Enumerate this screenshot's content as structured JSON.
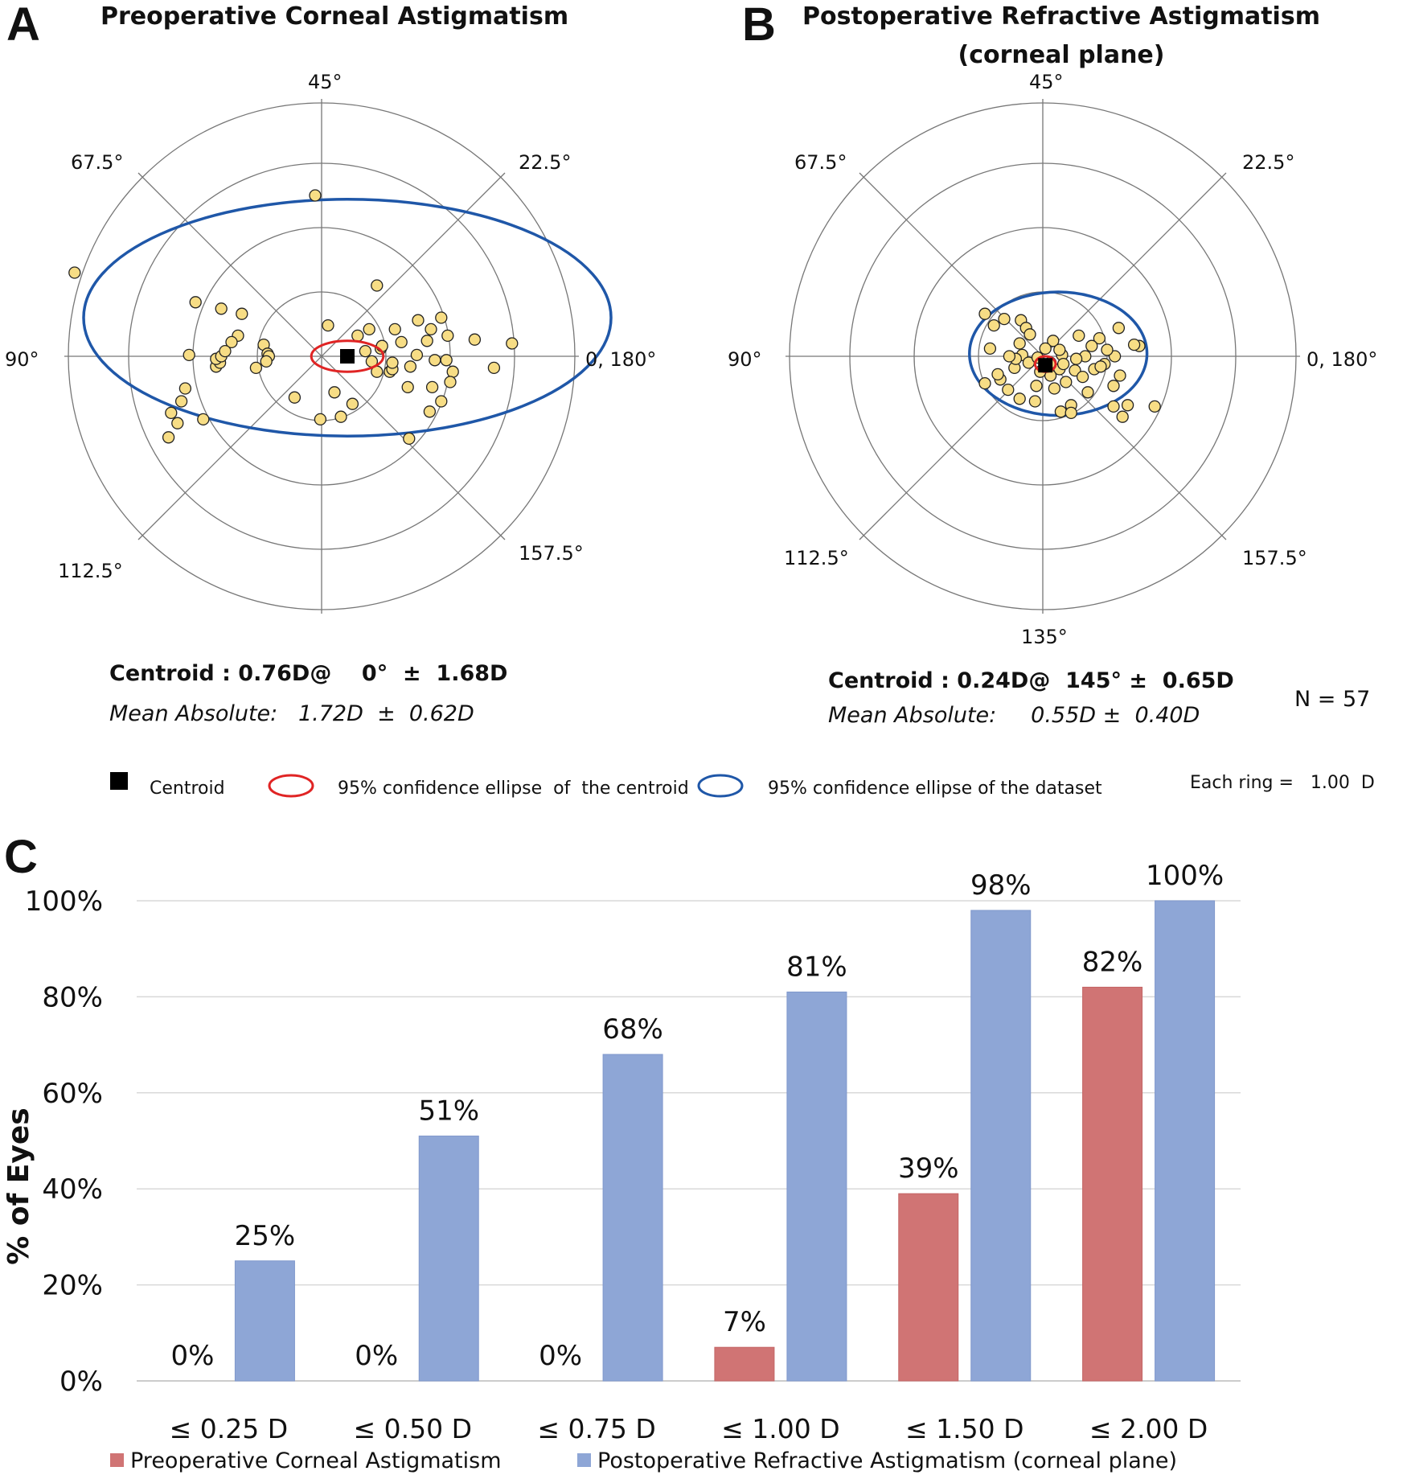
{
  "panels": {
    "a": {
      "letter": "A",
      "title": "Preoperative Corneal Astigmatism",
      "angle_labels": [
        "45°",
        "67.5°",
        "22.5°",
        "90°",
        "0, 180°",
        "112.5°",
        "157.5°"
      ],
      "centroid_text": "Centroid : 0.76D@    0°  ±  1.68D",
      "mean_text": "Mean Absolute:   1.72D  ±  0.62D"
    },
    "b": {
      "letter": "B",
      "title_line1": "Postoperative Refractive Astigmatism",
      "title_line2": "(corneal plane)",
      "angle_labels": [
        "45°",
        "67.5°",
        "22.5°",
        "90°",
        "0, 180°",
        "112.5°",
        "157.5°",
        "135°"
      ],
      "centroid_text": "Centroid : 0.24D@  145° ±  0.65D",
      "mean_text": "Mean Absolute:     0.55D ±  0.40D",
      "n_text": "N = 57"
    }
  },
  "legend": {
    "centroid": "Centroid",
    "centroid_ellipse": "95% confidence ellipse  of  the centroid",
    "dataset_ellipse": "95% confidence ellipse of the dataset",
    "ring_note": "Each ring =   1.00  D",
    "colors": {
      "centroid": "#000000",
      "centroid_ellipse": "#e02424",
      "dataset_ellipse": "#1f57a8"
    }
  },
  "chart_data": [
    {
      "type": "scatter",
      "name": "A",
      "title": "Preoperative Corneal Astigmatism",
      "coordinates": "double-angle polar, magnitude in D",
      "ring_step_d": 1.0,
      "rings": 3,
      "centroid": {
        "magnitude_d": 0.76,
        "axis_deg": 0,
        "sd_d": 1.68
      },
      "mean_absolute": {
        "mean_d": 1.72,
        "sd_d": 0.62
      },
      "centroid_marker": [
        0.2,
        0.0
      ],
      "centroid_ellipse": {
        "cx": 0.2,
        "cy": 0.0,
        "rx": 0.28,
        "ry": 0.12
      },
      "dataset_ellipse": {
        "cx": 0.2,
        "cy": 0.3,
        "rx": 2.05,
        "ry": 0.92
      },
      "points": [
        [
          -0.05,
          1.25
        ],
        [
          -1.92,
          0.65
        ],
        [
          0.43,
          0.55
        ],
        [
          -0.98,
          0.42
        ],
        [
          -0.78,
          0.37
        ],
        [
          -0.62,
          0.33
        ],
        [
          -0.65,
          0.16
        ],
        [
          -0.45,
          0.09
        ],
        [
          -0.42,
          0.02
        ],
        [
          -0.41,
          0.0
        ],
        [
          -0.51,
          -0.09
        ],
        [
          -1.06,
          -0.25
        ],
        [
          -0.82,
          -0.08
        ],
        [
          -0.79,
          -0.05
        ],
        [
          -0.82,
          -0.02
        ],
        [
          -0.78,
          0.0
        ],
        [
          -0.7,
          0.11
        ],
        [
          -0.75,
          0.04
        ],
        [
          -1.03,
          0.01
        ],
        [
          -1.09,
          -0.35
        ],
        [
          -1.17,
          -0.44
        ],
        [
          -1.19,
          -0.63
        ],
        [
          -1.12,
          -0.52
        ],
        [
          -0.92,
          -0.49
        ],
        [
          -0.43,
          -0.04
        ],
        [
          0.43,
          -0.12
        ],
        [
          0.1,
          -0.28
        ],
        [
          0.15,
          -0.47
        ],
        [
          -0.01,
          -0.49
        ],
        [
          0.24,
          -0.37
        ],
        [
          0.34,
          0.04
        ],
        [
          0.39,
          -0.04
        ],
        [
          0.46,
          0.06
        ],
        [
          0.53,
          -0.12
        ],
        [
          0.57,
          0.21
        ],
        [
          0.47,
          0.08
        ],
        [
          0.55,
          -0.1
        ],
        [
          0.69,
          -0.08
        ],
        [
          0.74,
          0.01
        ],
        [
          0.82,
          0.12
        ],
        [
          0.75,
          0.28
        ],
        [
          0.85,
          0.21
        ],
        [
          0.93,
          0.3
        ],
        [
          0.98,
          0.16
        ],
        [
          0.88,
          -0.03
        ],
        [
          0.97,
          -0.03
        ],
        [
          0.86,
          -0.24
        ],
        [
          1.02,
          -0.12
        ],
        [
          0.93,
          -0.35
        ],
        [
          1.0,
          -0.2
        ],
        [
          0.68,
          -0.64
        ],
        [
          0.84,
          -0.43
        ],
        [
          0.67,
          -0.24
        ],
        [
          0.55,
          -0.05
        ],
        [
          0.62,
          0.11
        ],
        [
          0.37,
          0.21
        ],
        [
          0.28,
          0.16
        ],
        [
          1.19,
          0.13
        ],
        [
          1.48,
          0.1
        ],
        [
          1.34,
          -0.09
        ],
        [
          0.05,
          0.24
        ],
        [
          -0.21,
          -0.32
        ]
      ]
    },
    {
      "type": "scatter",
      "name": "B",
      "title": "Postoperative Refractive Astigmatism (corneal plane)",
      "coordinates": "double-angle polar, magnitude in D",
      "ring_step_d": 1.0,
      "rings": 3,
      "centroid": {
        "magnitude_d": 0.24,
        "axis_deg": 145,
        "sd_d": 0.65
      },
      "mean_absolute": {
        "mean_d": 0.55,
        "sd_d": 0.4
      },
      "n": 57,
      "centroid_marker": [
        0.02,
        -0.07
      ],
      "centroid_ellipse": {
        "cx": 0.02,
        "cy": -0.06,
        "rx": 0.08,
        "ry": 0.06
      },
      "dataset_ellipse": {
        "cx": 0.12,
        "cy": 0.02,
        "rx": 0.69,
        "ry": 0.48
      },
      "points": [
        [
          -0.45,
          0.33
        ],
        [
          -0.38,
          0.24
        ],
        [
          -0.3,
          0.29
        ],
        [
          -0.17,
          0.28
        ],
        [
          -0.13,
          0.22
        ],
        [
          -0.41,
          0.06
        ],
        [
          -0.18,
          0.1
        ],
        [
          -0.16,
          0.01
        ],
        [
          -0.22,
          -0.09
        ],
        [
          -0.11,
          -0.05
        ],
        [
          -0.04,
          -0.01
        ],
        [
          0.06,
          -0.05
        ],
        [
          0.13,
          -0.1
        ],
        [
          0.15,
          0.01
        ],
        [
          0.33,
          0.0
        ],
        [
          0.4,
          -0.1
        ],
        [
          0.48,
          -0.06
        ],
        [
          0.56,
          0.0
        ],
        [
          0.59,
          0.22
        ],
        [
          0.75,
          0.08
        ],
        [
          0.71,
          0.09
        ],
        [
          0.6,
          -0.15
        ],
        [
          0.55,
          -0.23
        ],
        [
          0.26,
          -0.02
        ],
        [
          0.25,
          -0.11
        ],
        [
          -0.33,
          -0.18
        ],
        [
          -0.35,
          -0.14
        ],
        [
          -0.45,
          -0.21
        ],
        [
          -0.18,
          -0.33
        ],
        [
          -0.05,
          -0.23
        ],
        [
          0.06,
          -0.15
        ],
        [
          0.09,
          -0.25
        ],
        [
          0.22,
          -0.38
        ],
        [
          0.14,
          -0.43
        ],
        [
          0.22,
          -0.44
        ],
        [
          0.55,
          -0.39
        ],
        [
          0.62,
          -0.47
        ],
        [
          0.66,
          -0.38
        ],
        [
          0.87,
          -0.39
        ],
        [
          0.28,
          0.16
        ],
        [
          0.08,
          0.12
        ],
        [
          -0.21,
          -0.02
        ],
        [
          -0.06,
          -0.35
        ],
        [
          0.35,
          -0.28
        ],
        [
          0.45,
          -0.08
        ],
        [
          -0.27,
          -0.26
        ],
        [
          0.13,
          0.05
        ],
        [
          0.31,
          -0.16
        ],
        [
          -0.26,
          0.0
        ],
        [
          0.44,
          0.14
        ],
        [
          -0.1,
          0.17
        ],
        [
          0.18,
          -0.2
        ],
        [
          0.02,
          0.06
        ],
        [
          0.5,
          0.05
        ],
        [
          0.38,
          0.08
        ],
        [
          -0.02,
          -0.12
        ],
        [
          0.16,
          -0.06
        ]
      ]
    },
    {
      "type": "bar",
      "name": "C",
      "categories": [
        "≤ 0.25 D",
        "≤ 0.50 D",
        "≤ 0.75 D",
        "≤ 1.00 D",
        "≤ 1.50 D",
        "≤ 2.00 D"
      ],
      "series": [
        {
          "name": "Preoperative Corneal Astigmatism",
          "color": "#d07474",
          "values": [
            0,
            0,
            0,
            7,
            39,
            82
          ],
          "labels": [
            "0%",
            "0%",
            "0%",
            "7%",
            "39%",
            "82%"
          ]
        },
        {
          "name": "Postoperative Refractive Astigmatism (corneal plane)",
          "color": "#8ea6d6",
          "values": [
            25,
            51,
            68,
            81,
            98,
            100
          ],
          "labels": [
            "25%",
            "51%",
            "68%",
            "81%",
            "98%",
            "100%"
          ]
        }
      ],
      "yticks": [
        "0%",
        "20%",
        "40%",
        "60%",
        "80%",
        "100%"
      ],
      "ylabel": "% of Eyes",
      "ylim": [
        0,
        100
      ],
      "letter": "C",
      "grid": true,
      "legend_position": "bottom"
    }
  ]
}
